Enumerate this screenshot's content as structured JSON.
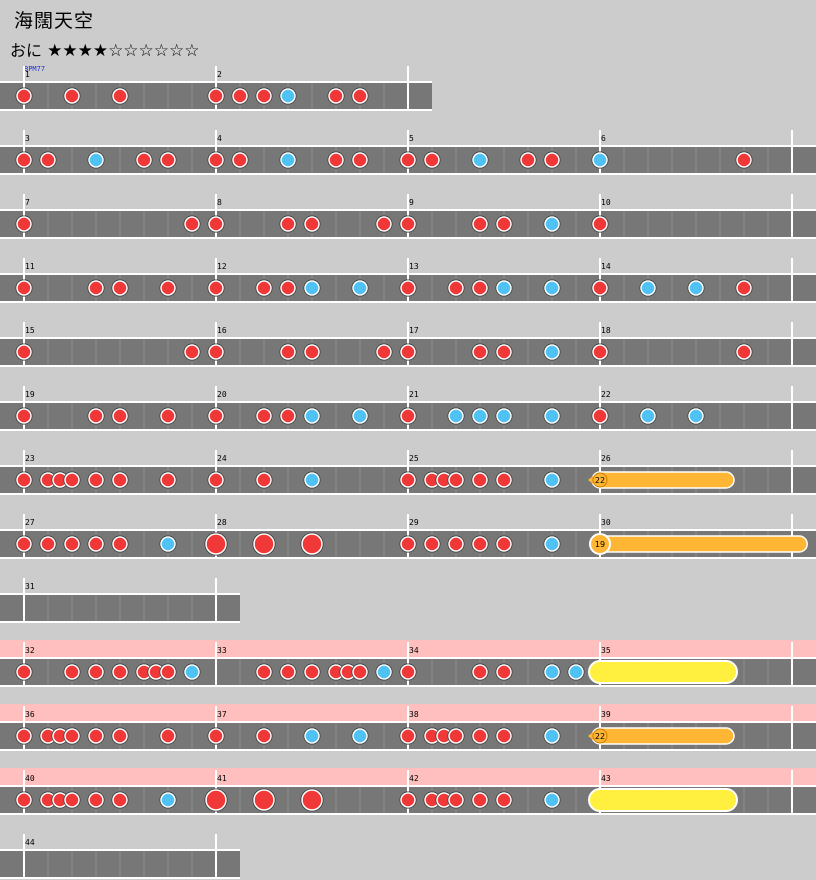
{
  "song": {
    "title": "海闊天空",
    "difficulty_label": "おに",
    "stars_text": "★★★★☆☆☆☆☆☆",
    "level": 4,
    "max_level": 10,
    "bpm_label": "BPM77"
  },
  "colors": {
    "background": "#cccccc",
    "lane": "#777777",
    "gogo_band": "#ffbfbf",
    "don": "#f03838",
    "ka": "#4ec2f2",
    "drumroll": "#ffb634",
    "balloon_big": "#fff040"
  },
  "chart_data": {
    "type": "taiko-chart",
    "lines": [
      {
        "gogo": false,
        "measures": [
          {
            "num": "1",
            "notes": [
              [
                0,
                "d"
              ],
              [
                2,
                "d"
              ],
              [
                4,
                "d"
              ]
            ]
          },
          {
            "num": "2",
            "notes": [
              [
                0,
                "d"
              ],
              [
                1,
                "d"
              ],
              [
                2,
                "d"
              ],
              [
                3,
                "k"
              ],
              [
                5,
                "d"
              ],
              [
                6,
                "d"
              ]
            ]
          }
        ]
      },
      {
        "gogo": false,
        "measures": [
          {
            "num": "3",
            "notes": [
              [
                0,
                "d"
              ],
              [
                1,
                "d"
              ],
              [
                3,
                "k"
              ],
              [
                5,
                "d"
              ],
              [
                6,
                "d"
              ]
            ]
          },
          {
            "num": "4",
            "notes": [
              [
                0,
                "d"
              ],
              [
                1,
                "d"
              ],
              [
                3,
                "k"
              ],
              [
                5,
                "d"
              ],
              [
                6,
                "d"
              ]
            ]
          },
          {
            "num": "5",
            "notes": [
              [
                0,
                "d"
              ],
              [
                1,
                "d"
              ],
              [
                3,
                "k"
              ],
              [
                5,
                "d"
              ],
              [
                6,
                "d"
              ]
            ]
          },
          {
            "num": "6",
            "notes": [
              [
                0,
                "k"
              ],
              [
                6,
                "d"
              ]
            ]
          }
        ]
      },
      {
        "gogo": false,
        "measures": [
          {
            "num": "7",
            "notes": [
              [
                0,
                "d"
              ]
            ]
          },
          {
            "num": "8",
            "notes": [
              [
                -1,
                "d"
              ],
              [
                0,
                "d"
              ],
              [
                3,
                "d"
              ],
              [
                4,
                "d"
              ],
              [
                7,
                "d"
              ]
            ]
          },
          {
            "num": "9",
            "notes": [
              [
                0,
                "d"
              ],
              [
                3,
                "d"
              ],
              [
                4,
                "d"
              ],
              [
                6,
                "k"
              ]
            ]
          },
          {
            "num": "10",
            "notes": [
              [
                0,
                "d"
              ]
            ]
          }
        ]
      },
      {
        "gogo": false,
        "measures": [
          {
            "num": "11",
            "notes": [
              [
                0,
                "d"
              ],
              [
                3,
                "d"
              ],
              [
                4,
                "d"
              ],
              [
                6,
                "d"
              ]
            ]
          },
          {
            "num": "12",
            "notes": [
              [
                0,
                "d"
              ],
              [
                2,
                "d"
              ],
              [
                3,
                "d"
              ],
              [
                4,
                "k"
              ],
              [
                6,
                "k"
              ]
            ]
          },
          {
            "num": "13",
            "notes": [
              [
                0,
                "d"
              ],
              [
                2,
                "d"
              ],
              [
                3,
                "d"
              ],
              [
                4,
                "k"
              ],
              [
                6,
                "k"
              ]
            ]
          },
          {
            "num": "14",
            "notes": [
              [
                0,
                "d"
              ],
              [
                2,
                "k"
              ],
              [
                4,
                "k"
              ],
              [
                6,
                "d"
              ]
            ]
          }
        ]
      },
      {
        "gogo": false,
        "measures": [
          {
            "num": "15",
            "notes": [
              [
                0,
                "d"
              ]
            ]
          },
          {
            "num": "16",
            "notes": [
              [
                -1,
                "d"
              ],
              [
                0,
                "d"
              ],
              [
                3,
                "d"
              ],
              [
                4,
                "d"
              ],
              [
                7,
                "d"
              ]
            ]
          },
          {
            "num": "17",
            "notes": [
              [
                0,
                "d"
              ],
              [
                3,
                "d"
              ],
              [
                4,
                "d"
              ],
              [
                6,
                "k"
              ]
            ]
          },
          {
            "num": "18",
            "notes": [
              [
                0,
                "d"
              ],
              [
                6,
                "d"
              ]
            ]
          }
        ]
      },
      {
        "gogo": false,
        "measures": [
          {
            "num": "19",
            "notes": [
              [
                0,
                "d"
              ],
              [
                3,
                "d"
              ],
              [
                4,
                "d"
              ],
              [
                6,
                "d"
              ]
            ]
          },
          {
            "num": "20",
            "notes": [
              [
                0,
                "d"
              ],
              [
                2,
                "d"
              ],
              [
                3,
                "d"
              ],
              [
                4,
                "k"
              ],
              [
                6,
                "k"
              ]
            ]
          },
          {
            "num": "21",
            "notes": [
              [
                0,
                "d"
              ],
              [
                2,
                "k"
              ],
              [
                3,
                "k"
              ],
              [
                4,
                "k"
              ],
              [
                6,
                "k"
              ]
            ]
          },
          {
            "num": "22",
            "notes": [
              [
                0,
                "d"
              ],
              [
                2,
                "k"
              ],
              [
                4,
                "k"
              ]
            ]
          }
        ]
      },
      {
        "gogo": false,
        "measures": [
          {
            "num": "23",
            "notes": [
              [
                0,
                "d"
              ],
              [
                1,
                "d"
              ],
              [
                1.5,
                "d"
              ],
              [
                2,
                "d"
              ],
              [
                3,
                "d"
              ],
              [
                4,
                "d"
              ],
              [
                6,
                "d"
              ]
            ]
          },
          {
            "num": "24",
            "notes": [
              [
                0,
                "d"
              ],
              [
                2,
                "d"
              ],
              [
                4,
                "k"
              ]
            ]
          },
          {
            "num": "25",
            "notes": [
              [
                0,
                "d"
              ],
              [
                1,
                "d"
              ],
              [
                1.5,
                "d"
              ],
              [
                2,
                "d"
              ],
              [
                3,
                "d"
              ],
              [
                4,
                "d"
              ],
              [
                6,
                "k"
              ]
            ]
          },
          {
            "num": "26",
            "notes": [],
            "roll": {
              "kind": "balloon",
              "count": "22",
              "start": 0,
              "end": 5.25
            }
          }
        ]
      },
      {
        "gogo": false,
        "measures": [
          {
            "num": "27",
            "notes": [
              [
                0,
                "d"
              ],
              [
                1,
                "d"
              ],
              [
                2,
                "d"
              ],
              [
                3,
                "d"
              ],
              [
                4,
                "d"
              ],
              [
                6,
                "k"
              ]
            ]
          },
          {
            "num": "28",
            "notes": [
              [
                0,
                "D"
              ],
              [
                2,
                "D"
              ],
              [
                4,
                "D"
              ]
            ]
          },
          {
            "num": "29",
            "notes": [
              [
                0,
                "d"
              ],
              [
                1,
                "d"
              ],
              [
                2,
                "d"
              ],
              [
                3,
                "d"
              ],
              [
                4,
                "d"
              ],
              [
                6,
                "k"
              ]
            ]
          },
          {
            "num": "30",
            "notes": [],
            "roll": {
              "kind": "balloon-big",
              "count": "19",
              "start": 0,
              "end": 8.3
            }
          }
        ]
      },
      {
        "gogo": false,
        "short": true,
        "measures": [
          {
            "num": "31",
            "notes": []
          }
        ]
      },
      {
        "gogo": true,
        "measures": [
          {
            "num": "32",
            "notes": [
              [
                0,
                "d"
              ],
              [
                2,
                "d"
              ],
              [
                3,
                "d"
              ],
              [
                4,
                "d"
              ],
              [
                5,
                "d"
              ],
              [
                5.5,
                "d"
              ],
              [
                6,
                "d"
              ],
              [
                7,
                "k"
              ]
            ]
          },
          {
            "num": "33",
            "notes": [
              [
                2,
                "d"
              ],
              [
                3,
                "d"
              ],
              [
                4,
                "d"
              ],
              [
                5,
                "d"
              ],
              [
                5.5,
                "d"
              ],
              [
                6,
                "d"
              ],
              [
                7,
                "k"
              ]
            ]
          },
          {
            "num": "34",
            "notes": [
              [
                0,
                "d"
              ],
              [
                3,
                "d"
              ],
              [
                4,
                "d"
              ],
              [
                6,
                "k"
              ],
              [
                7,
                "k"
              ]
            ]
          },
          {
            "num": "35",
            "notes": [],
            "roll": {
              "kind": "big-roll",
              "start": 0,
              "end": 5.25
            }
          }
        ]
      },
      {
        "gogo": true,
        "measures": [
          {
            "num": "36",
            "notes": [
              [
                0,
                "d"
              ],
              [
                1,
                "d"
              ],
              [
                1.5,
                "d"
              ],
              [
                2,
                "d"
              ],
              [
                3,
                "d"
              ],
              [
                4,
                "d"
              ],
              [
                6,
                "d"
              ]
            ]
          },
          {
            "num": "37",
            "notes": [
              [
                0,
                "d"
              ],
              [
                2,
                "d"
              ],
              [
                4,
                "k"
              ],
              [
                6,
                "k"
              ]
            ]
          },
          {
            "num": "38",
            "notes": [
              [
                0,
                "d"
              ],
              [
                1,
                "d"
              ],
              [
                1.5,
                "d"
              ],
              [
                2,
                "d"
              ],
              [
                3,
                "d"
              ],
              [
                4,
                "d"
              ],
              [
                6,
                "k"
              ]
            ]
          },
          {
            "num": "39",
            "notes": [],
            "roll": {
              "kind": "balloon",
              "count": "22",
              "start": 0,
              "end": 5.25
            }
          }
        ]
      },
      {
        "gogo": true,
        "measures": [
          {
            "num": "40",
            "notes": [
              [
                0,
                "d"
              ],
              [
                1,
                "d"
              ],
              [
                1.5,
                "d"
              ],
              [
                2,
                "d"
              ],
              [
                3,
                "d"
              ],
              [
                4,
                "d"
              ],
              [
                6,
                "k"
              ]
            ]
          },
          {
            "num": "41",
            "notes": [
              [
                0,
                "D"
              ],
              [
                2,
                "D"
              ],
              [
                4,
                "D"
              ]
            ]
          },
          {
            "num": "42",
            "notes": [
              [
                0,
                "d"
              ],
              [
                1,
                "d"
              ],
              [
                1.5,
                "d"
              ],
              [
                2,
                "d"
              ],
              [
                3,
                "d"
              ],
              [
                4,
                "d"
              ],
              [
                6,
                "k"
              ]
            ]
          },
          {
            "num": "43",
            "notes": [],
            "roll": {
              "kind": "big-roll",
              "start": 0,
              "end": 5.25
            }
          }
        ]
      },
      {
        "gogo": false,
        "short": true,
        "measures": [
          {
            "num": "44",
            "notes": []
          }
        ]
      }
    ]
  }
}
